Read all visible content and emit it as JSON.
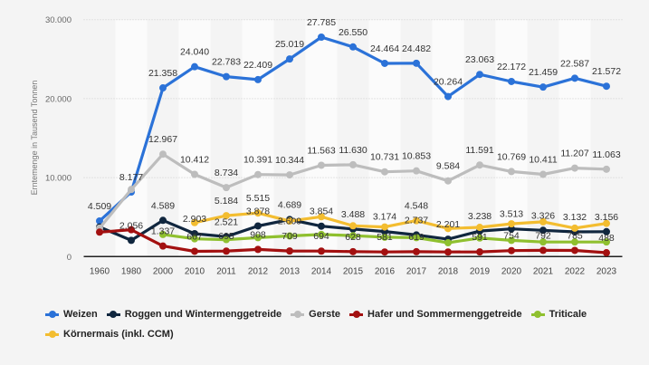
{
  "chart_data": {
    "type": "line",
    "title": "",
    "xlabel": "",
    "ylabel": "Erntemenge in Tausend Tonnen",
    "ylim": [
      0,
      30000
    ],
    "yticks": [
      0,
      10000,
      20000,
      30000
    ],
    "ytick_labels": [
      "0",
      "10.000",
      "20.000",
      "30.000"
    ],
    "grid": true,
    "legend_position": "bottom-left",
    "categories": [
      "1960",
      "1980",
      "2000",
      "2010",
      "2011",
      "2012",
      "2013",
      "2014",
      "2015",
      "2016",
      "2017",
      "2018",
      "2019",
      "2020",
      "2021",
      "2022",
      "2023"
    ],
    "series": [
      {
        "name": "Weizen",
        "color": "#2b72d8",
        "values": [
          4509,
          8177,
          21358,
          24040,
          22783,
          22409,
          25019,
          27785,
          26550,
          24464,
          24482,
          20264,
          23063,
          22172,
          21459,
          22587,
          21572
        ],
        "labels": [
          "4.509",
          "8.177",
          "21.358",
          "24.040",
          "22.783",
          "22.409",
          "25.019",
          "27.785",
          "26.550",
          "24.464",
          "24.482",
          "20.264",
          "23.063",
          "22.172",
          "21.459",
          "22.587",
          "21.572"
        ]
      },
      {
        "name": "Roggen und Wintermenggetreide",
        "color": "#10263e",
        "values": [
          3750,
          2056,
          4589,
          2903,
          2521,
          3878,
          4689,
          3854,
          3488,
          3174,
          2737,
          2201,
          3238,
          3513,
          3326,
          3132,
          3156
        ],
        "labels": [
          null,
          "2.056",
          "4.589",
          "2.903",
          "2.521",
          "3.878",
          "4.689",
          "3.854",
          "3.488",
          "3.174",
          "2.737",
          "2.201",
          "3.238",
          "3.513",
          "3.326",
          "3.132",
          "3.156"
        ]
      },
      {
        "name": "Gerste",
        "color": "#bdbdbd",
        "values": [
          3600,
          8500,
          12967,
          10412,
          8734,
          10391,
          10344,
          11563,
          11630,
          10731,
          10853,
          9584,
          11591,
          10769,
          10411,
          11207,
          11063
        ],
        "labels": [
          null,
          null,
          "12.967",
          "10.412",
          "8.734",
          "10.391",
          "10.344",
          "11.563",
          "11.630",
          "10.731",
          "10.853",
          "9.584",
          "11.591",
          "10.769",
          "10.411",
          "11.207",
          "11.063"
        ]
      },
      {
        "name": "Hafer und Sommermenggetreide",
        "color": "#a31010",
        "values": [
          3100,
          3400,
          1337,
          667,
          695,
          908,
          709,
          694,
          628,
          581,
          619,
          580,
          591,
          754,
          792,
          785,
          488
        ],
        "labels": [
          null,
          null,
          "1.337",
          "667",
          "695",
          "908",
          "709",
          "694",
          "628",
          "581",
          "619",
          null,
          "591",
          "754",
          "792",
          "785",
          "488"
        ]
      },
      {
        "name": "Triticale",
        "color": "#8fc02f",
        "values": [
          null,
          null,
          2800,
          2250,
          2150,
          2400,
          2609,
          2800,
          2650,
          2450,
          2400,
          1750,
          2350,
          2050,
          1850,
          1850,
          1850
        ],
        "labels": [
          null,
          null,
          null,
          null,
          null,
          null,
          "2.609",
          null,
          null,
          null,
          null,
          null,
          null,
          null,
          null,
          null,
          null
        ]
      },
      {
        "name": "Körnermais (inkl. CCM)",
        "color": "#f3bd30",
        "values": [
          null,
          null,
          null,
          4300,
          5184,
          5515,
          4500,
          5050,
          3900,
          3750,
          4548,
          3550,
          3700,
          4150,
          4400,
          3600,
          4200
        ],
        "labels": [
          null,
          null,
          null,
          null,
          "5.184",
          "5.515",
          null,
          null,
          null,
          null,
          "4.548",
          null,
          null,
          null,
          null,
          null,
          null
        ]
      }
    ]
  }
}
